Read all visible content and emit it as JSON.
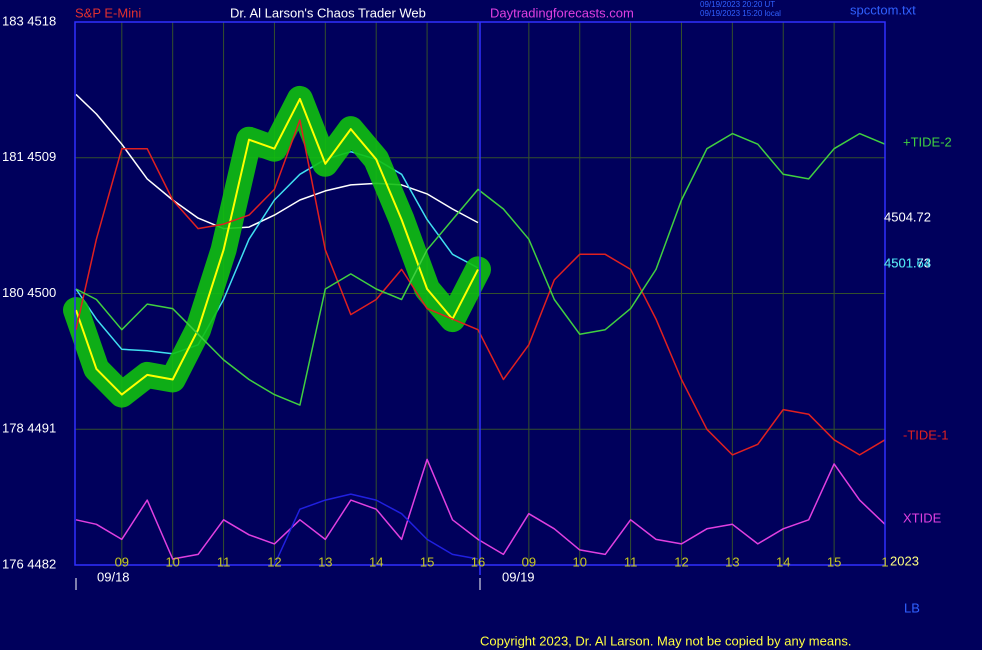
{
  "chart_data": {
    "type": "line",
    "header": {
      "symbol": "S&P E-Mini",
      "title": "Dr. Al Larson's Chaos Trader Web",
      "site": "Daytradingforecasts.com",
      "time_ut": "09/19/2023 20:20 UT",
      "time_local": "09/19/2023 15:20 local",
      "file": "spcctom.txt"
    },
    "footer": "Copyright 2023, Dr. Al Larson. May not be copied by any means.",
    "dates": [
      "09/18",
      "09/19"
    ],
    "side_labels": [
      "4504.72",
      "4501.73",
      "4501.64",
      "2023",
      "LB"
    ],
    "grid": true,
    "xlim": [
      -0.92,
      15
    ],
    "ylim": [
      4482,
      4518
    ],
    "yticks": [
      {
        "value": 4518,
        "label": "183 4518"
      },
      {
        "value": 4509,
        "label": "181 4509"
      },
      {
        "value": 4500,
        "label": "180 4500"
      },
      {
        "value": 4491,
        "label": "178 4491"
      },
      {
        "value": 4482,
        "label": "176 4482"
      }
    ],
    "xticks": [
      {
        "value": 0,
        "label": "09"
      },
      {
        "value": 1,
        "label": "10"
      },
      {
        "value": 2,
        "label": "11"
      },
      {
        "value": 3,
        "label": "12"
      },
      {
        "value": 4,
        "label": "13"
      },
      {
        "value": 5,
        "label": "14"
      },
      {
        "value": 6,
        "label": "15"
      },
      {
        "value": 7,
        "label": "16"
      },
      {
        "value": 8,
        "label": "09"
      },
      {
        "value": 9,
        "label": "10"
      },
      {
        "value": 10,
        "label": "11"
      },
      {
        "value": 11,
        "label": "12"
      },
      {
        "value": 12,
        "label": "13"
      },
      {
        "value": 13,
        "label": "14"
      },
      {
        "value": 14,
        "label": "15"
      },
      {
        "value": 15,
        "label": "1"
      }
    ],
    "x": [
      -0.9,
      -0.5,
      0,
      0.5,
      1,
      1.5,
      2,
      2.5,
      3,
      3.5,
      4,
      4.5,
      5,
      5.5,
      6,
      6.5,
      7,
      7.5,
      8,
      8.5,
      9,
      9.5,
      10,
      10.5,
      11,
      11.5,
      12,
      12.5,
      13,
      13.5,
      14,
      14.5,
      15
    ],
    "series": [
      {
        "color": "#ffffff",
        "values": [
          4513.2,
          4511.9,
          4509.9,
          4507.6,
          4506.2,
          4505.0,
          4504.3,
          4504.4,
          4505.2,
          4506.2,
          4506.8,
          4507.2,
          4507.3,
          4507.2,
          4506.6,
          4505.6,
          4504.7,
          null,
          null,
          null,
          null,
          null,
          null,
          null,
          null,
          null,
          null,
          null,
          null,
          null,
          null,
          null,
          null
        ]
      },
      {
        "color": "#40e0f0",
        "values": [
          4500.3,
          4498.3,
          4496.3,
          4496.2,
          4496.0,
          4496.6,
          4499.6,
          4503.6,
          4506.2,
          4507.9,
          4508.9,
          4509.4,
          4508.9,
          4507.9,
          4504.9,
          4502.6,
          4501.7,
          null,
          null,
          null,
          null,
          null,
          null,
          null,
          null,
          null,
          null,
          null,
          null,
          null,
          null,
          null,
          null
        ]
      },
      {
        "color": "#ffff00",
        "band_color": "#10c010",
        "values": [
          4498.9,
          4495.0,
          4493.3,
          4494.6,
          4494.3,
          4497.6,
          4502.9,
          4510.2,
          4509.6,
          4512.9,
          4508.6,
          4510.9,
          4508.9,
          4504.9,
          4500.3,
          4498.3,
          4501.6,
          null,
          null,
          null,
          null,
          null,
          null,
          null,
          null,
          null,
          null,
          null,
          null,
          null,
          null,
          null,
          null
        ]
      },
      {
        "name": "-TIDE-1",
        "color": "#e02020",
        "values": [
          4497.6,
          4503.6,
          4509.6,
          4509.6,
          4506.2,
          4504.3,
          4504.6,
          4505.2,
          4506.9,
          4511.5,
          4502.9,
          4498.6,
          4499.6,
          4501.6,
          4499.0,
          4498.3,
          4497.6,
          4494.3,
          4496.6,
          4500.9,
          4502.6,
          4502.6,
          4501.6,
          4498.3,
          4494.3,
          4491.0,
          4489.3,
          4490.0,
          4492.3,
          4492.0,
          4490.3,
          4489.3,
          4490.3
        ]
      },
      {
        "name": "+TIDE-2",
        "color": "#40d040",
        "values": [
          4500.3,
          4499.6,
          4497.6,
          4499.3,
          4499.0,
          4497.3,
          4495.6,
          4494.3,
          4493.3,
          4492.6,
          4500.3,
          4501.3,
          4500.3,
          4499.6,
          4502.9,
          4504.9,
          4506.9,
          4505.6,
          4503.6,
          4499.6,
          4497.3,
          4497.6,
          4499.0,
          4501.6,
          4506.2,
          4509.6,
          4510.6,
          4509.9,
          4507.9,
          4507.6,
          4509.6,
          4510.6,
          4509.9
        ]
      },
      {
        "name": "XTIDE",
        "color": "#e040e0",
        "values": [
          4485.0,
          4484.7,
          4483.7,
          4486.3,
          4482.4,
          4482.7,
          4485.0,
          4484.0,
          4483.4,
          4485.0,
          4483.7,
          4486.3,
          4485.7,
          4483.7,
          4489.0,
          4485.0,
          4483.7,
          4482.7,
          4485.4,
          4484.4,
          4483.0,
          4482.7,
          4485.0,
          4483.7,
          4483.4,
          4484.4,
          4484.7,
          4483.4,
          4484.4,
          4485.0,
          4488.7,
          4486.3,
          4484.7
        ]
      },
      {
        "color": "#2020e0",
        "values": [
          null,
          null,
          null,
          null,
          null,
          null,
          null,
          null,
          4482.0,
          4485.7,
          4486.3,
          4486.7,
          4486.3,
          4485.4,
          4483.7,
          4482.7,
          4482.4,
          null,
          null,
          null,
          null,
          null,
          null,
          null,
          null,
          null,
          null,
          null,
          null,
          null,
          null,
          null,
          null
        ]
      }
    ]
  }
}
